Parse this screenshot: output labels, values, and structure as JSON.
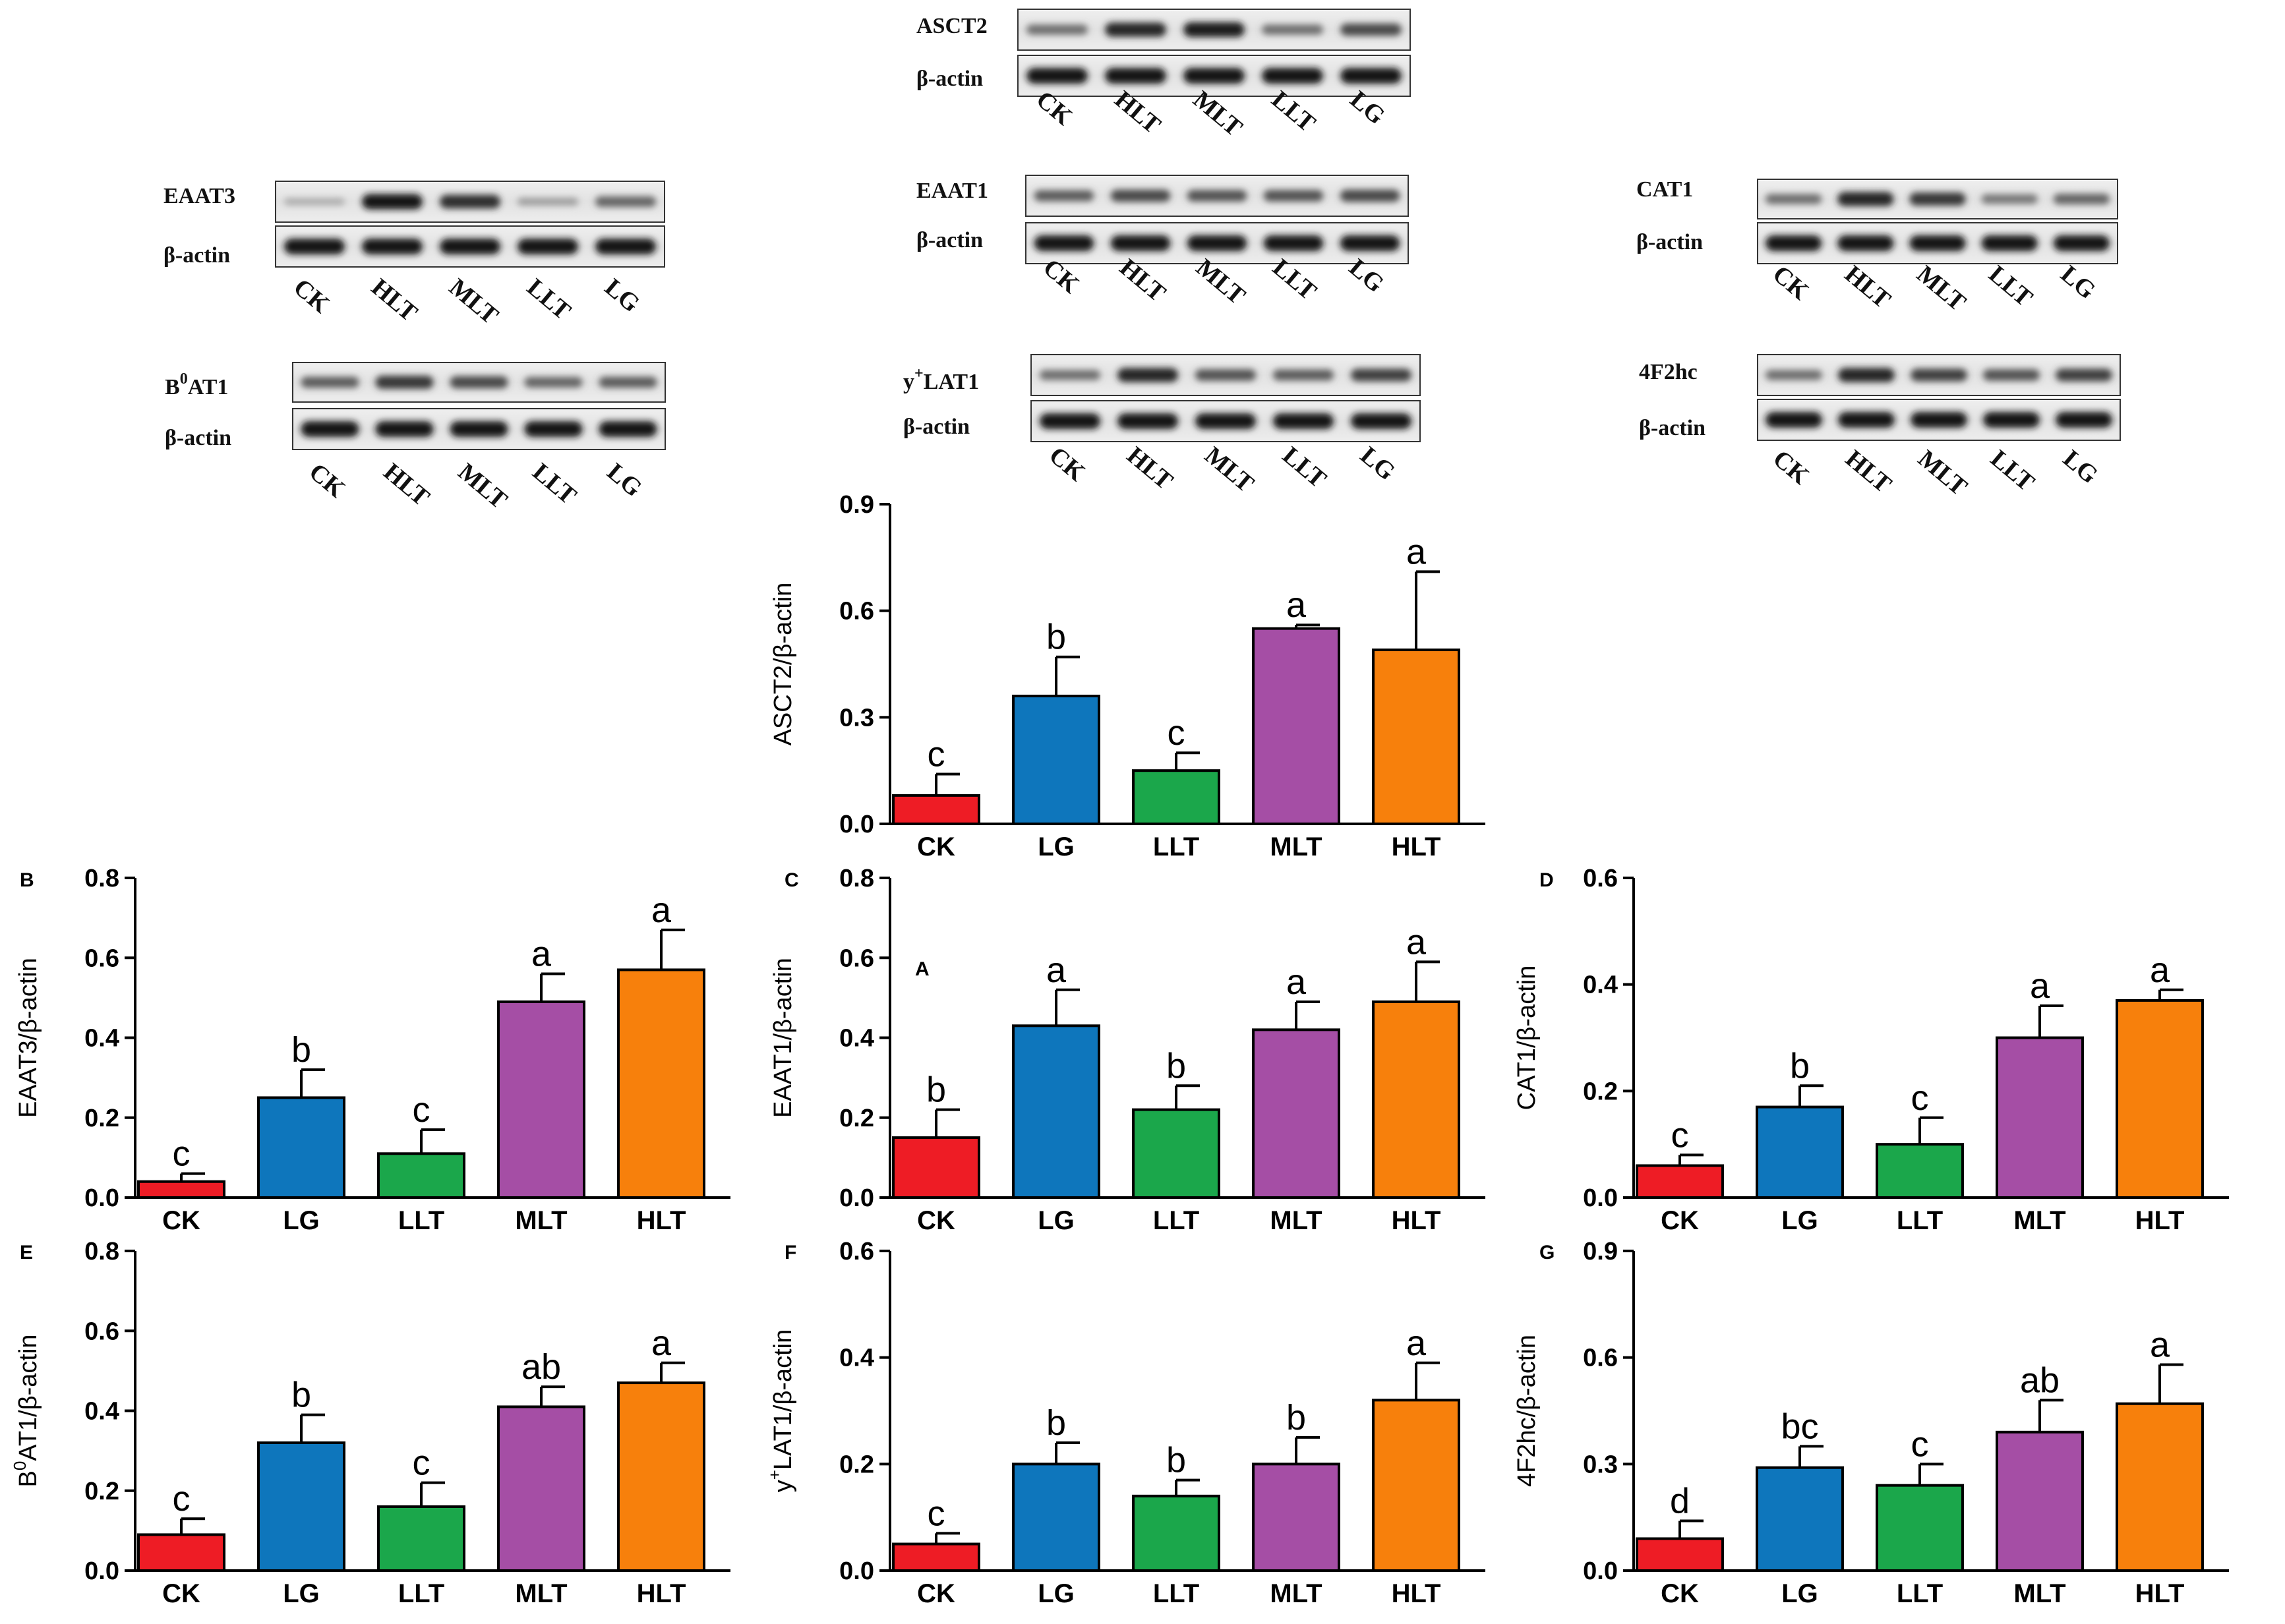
{
  "blots": [
    {
      "id": "EAAT3",
      "label": "EAAT3",
      "actin": "β-actin",
      "lanes": [
        "CK",
        "HLT",
        "MLT",
        "LLT",
        "LG"
      ],
      "intensity": [
        0.12,
        0.95,
        0.8,
        0.2,
        0.5
      ]
    },
    {
      "id": "B0AT1",
      "label": "B",
      "label_sup": "0",
      "label_rest": "AT1",
      "actin": "β-actin",
      "lanes": [
        "CK",
        "HLT",
        "MLT",
        "LLT",
        "LG"
      ],
      "intensity": [
        0.55,
        0.75,
        0.65,
        0.5,
        0.55
      ]
    },
    {
      "id": "ASCT2",
      "label": "ASCT2",
      "actin": "β-actin",
      "lanes": [
        "CK",
        "HLT",
        "MLT",
        "LLT",
        "LG"
      ],
      "intensity": [
        0.45,
        0.85,
        0.9,
        0.45,
        0.65
      ]
    },
    {
      "id": "EAAT1",
      "label": "EAAT1",
      "actin": "β-actin",
      "lanes": [
        "CK",
        "HLT",
        "MLT",
        "LLT",
        "LG"
      ],
      "intensity": [
        0.55,
        0.65,
        0.6,
        0.6,
        0.65
      ]
    },
    {
      "id": "yLAT1",
      "label": "y",
      "label_sup": "+",
      "label_rest": "LAT1",
      "actin": "β-actin",
      "lanes": [
        "CK",
        "HLT",
        "MLT",
        "LLT",
        "LG"
      ],
      "intensity": [
        0.45,
        0.85,
        0.6,
        0.55,
        0.7
      ]
    },
    {
      "id": "CAT1",
      "label": "CAT1",
      "actin": "β-actin",
      "lanes": [
        "CK",
        "HLT",
        "MLT",
        "LLT",
        "LG"
      ],
      "intensity": [
        0.45,
        0.85,
        0.75,
        0.4,
        0.5
      ]
    },
    {
      "id": "4F2hc",
      "label": "4F2hc",
      "actin": "β-actin",
      "lanes": [
        "CK",
        "HLT",
        "MLT",
        "LLT",
        "LG"
      ],
      "intensity": [
        0.45,
        0.85,
        0.7,
        0.6,
        0.7
      ]
    }
  ],
  "colors": {
    "CK": "#ee1c25",
    "LG": "#0e76bc",
    "LLT": "#1ba74b",
    "MLT": "#a54ea5",
    "HLT": "#f7800c"
  },
  "chart_data": [
    {
      "panel": "A",
      "type": "bar",
      "ylabel": "ASCT2/β-actin",
      "ylim": [
        0,
        0.9
      ],
      "yticks": [
        "0.0",
        "0.3",
        "0.6",
        "0.9"
      ],
      "categories": [
        "CK",
        "LG",
        "LLT",
        "MLT",
        "HLT"
      ],
      "values": [
        0.08,
        0.36,
        0.15,
        0.55,
        0.49
      ],
      "errors": [
        0.06,
        0.11,
        0.05,
        0.01,
        0.22
      ],
      "letters": [
        "c",
        "b",
        "c",
        "a",
        "a"
      ]
    },
    {
      "panel": "B",
      "type": "bar",
      "ylabel": "EAAT3/β-actin",
      "ylim": [
        0,
        0.8
      ],
      "yticks": [
        "0.0",
        "0.2",
        "0.4",
        "0.6",
        "0.8"
      ],
      "categories": [
        "CK",
        "LG",
        "LLT",
        "MLT",
        "HLT"
      ],
      "values": [
        0.04,
        0.25,
        0.11,
        0.49,
        0.57
      ],
      "errors": [
        0.02,
        0.07,
        0.06,
        0.07,
        0.1
      ],
      "letters": [
        "c",
        "b",
        "c",
        "a",
        "a"
      ]
    },
    {
      "panel": "C",
      "type": "bar",
      "ylabel": "EAAT1/β-actin",
      "ylim": [
        0,
        0.8
      ],
      "yticks": [
        "0.0",
        "0.2",
        "0.4",
        "0.6",
        "0.8"
      ],
      "categories": [
        "CK",
        "LG",
        "LLT",
        "MLT",
        "HLT"
      ],
      "values": [
        0.15,
        0.43,
        0.22,
        0.42,
        0.49
      ],
      "errors": [
        0.07,
        0.09,
        0.06,
        0.07,
        0.1
      ],
      "letters": [
        "b",
        "a",
        "b",
        "a",
        "a"
      ]
    },
    {
      "panel": "D",
      "type": "bar",
      "ylabel": "CAT1/β-actin",
      "ylim": [
        0,
        0.6
      ],
      "yticks": [
        "0.0",
        "0.2",
        "0.4",
        "0.6"
      ],
      "categories": [
        "CK",
        "LG",
        "LLT",
        "MLT",
        "HLT"
      ],
      "values": [
        0.06,
        0.17,
        0.1,
        0.3,
        0.37
      ],
      "errors": [
        0.02,
        0.04,
        0.05,
        0.06,
        0.02
      ],
      "letters": [
        "c",
        "b",
        "c",
        "a",
        "a"
      ]
    },
    {
      "panel": "E",
      "type": "bar",
      "ylabel_pre": "B",
      "ylabel_sup": "0",
      "ylabel_post": "AT1/β-actin",
      "ylim": [
        0,
        0.8
      ],
      "yticks": [
        "0.0",
        "0.2",
        "0.4",
        "0.6",
        "0.8"
      ],
      "categories": [
        "CK",
        "LG",
        "LLT",
        "MLT",
        "HLT"
      ],
      "values": [
        0.09,
        0.32,
        0.16,
        0.41,
        0.47
      ],
      "errors": [
        0.04,
        0.07,
        0.06,
        0.05,
        0.05
      ],
      "letters": [
        "c",
        "b",
        "c",
        "ab",
        "a"
      ]
    },
    {
      "panel": "F",
      "type": "bar",
      "ylabel_pre": "y",
      "ylabel_sup": "+",
      "ylabel_post": "LAT1/β-actin",
      "ylim": [
        0,
        0.6
      ],
      "yticks": [
        "0.0",
        "0.2",
        "0.4",
        "0.6"
      ],
      "categories": [
        "CK",
        "LG",
        "LLT",
        "MLT",
        "HLT"
      ],
      "values": [
        0.05,
        0.2,
        0.14,
        0.2,
        0.32
      ],
      "errors": [
        0.02,
        0.04,
        0.03,
        0.05,
        0.07
      ],
      "letters": [
        "c",
        "b",
        "b",
        "b",
        "a"
      ]
    },
    {
      "panel": "G",
      "type": "bar",
      "ylabel": "4F2hc/β-actin",
      "ylim": [
        0,
        0.9
      ],
      "yticks": [
        "0.0",
        "0.3",
        "0.6",
        "0.9"
      ],
      "categories": [
        "CK",
        "LG",
        "LLT",
        "MLT",
        "HLT"
      ],
      "values": [
        0.09,
        0.29,
        0.24,
        0.39,
        0.47
      ],
      "errors": [
        0.05,
        0.06,
        0.06,
        0.09,
        0.11
      ],
      "letters": [
        "d",
        "bc",
        "c",
        "ab",
        "a"
      ]
    }
  ]
}
